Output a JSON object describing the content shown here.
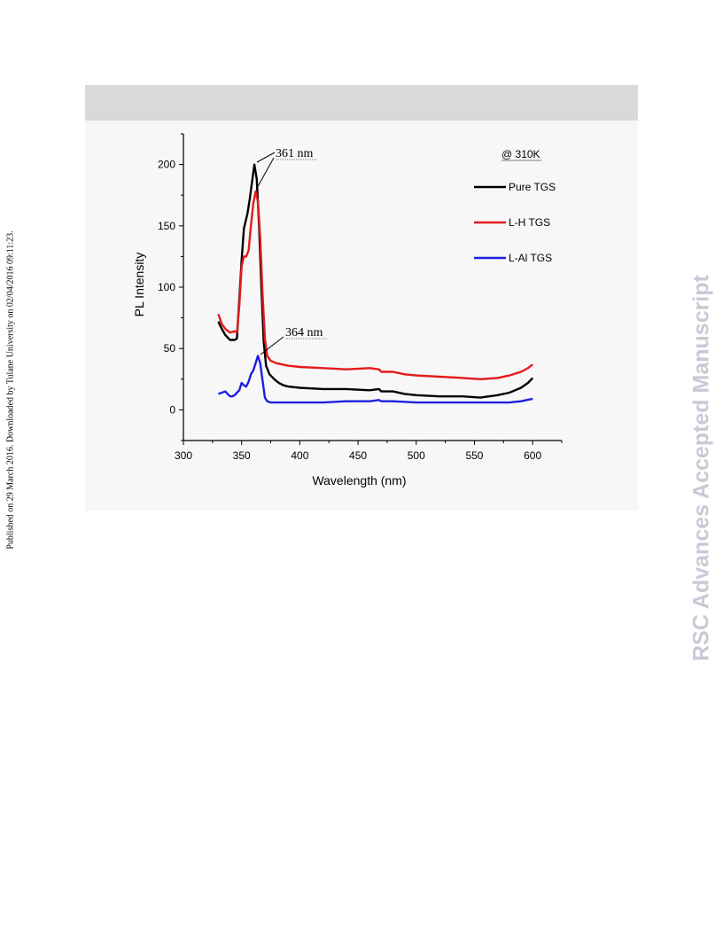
{
  "margin": {
    "left_note": "Published on 29 March 2016. Downloaded by Tulane University on 02/04/2016 09:11:23.",
    "right_watermark": "RSC Advances Accepted Manuscript"
  },
  "chart_data": {
    "type": "line",
    "title": "",
    "xlabel": "Wavelength (nm)",
    "ylabel": "PL Intensity",
    "xlim": [
      300,
      625
    ],
    "ylim": [
      -25,
      225
    ],
    "xticks": [
      300,
      350,
      400,
      450,
      500,
      550,
      600
    ],
    "yticks": [
      0,
      50,
      100,
      150,
      200
    ],
    "legend_position": "top-right",
    "annotations": {
      "condition": "@ 310K",
      "peak1": "361 nm",
      "peak2": "364 nm"
    },
    "series": [
      {
        "name": "Pure TGS",
        "color": "#000000",
        "points": [
          [
            330,
            72
          ],
          [
            333,
            66
          ],
          [
            336,
            61
          ],
          [
            340,
            57
          ],
          [
            344,
            57
          ],
          [
            346,
            58
          ],
          [
            348,
            90
          ],
          [
            350,
            122
          ],
          [
            352,
            148
          ],
          [
            355,
            160
          ],
          [
            357,
            172
          ],
          [
            359,
            186
          ],
          [
            361,
            200
          ],
          [
            363,
            188
          ],
          [
            365,
            150
          ],
          [
            367,
            100
          ],
          [
            369,
            55
          ],
          [
            371,
            36
          ],
          [
            374,
            29
          ],
          [
            378,
            25
          ],
          [
            382,
            22
          ],
          [
            386,
            20
          ],
          [
            390,
            19
          ],
          [
            400,
            18
          ],
          [
            420,
            17
          ],
          [
            440,
            17
          ],
          [
            460,
            16
          ],
          [
            468,
            17
          ],
          [
            470,
            15
          ],
          [
            480,
            15
          ],
          [
            490,
            13
          ],
          [
            500,
            12
          ],
          [
            520,
            11
          ],
          [
            540,
            11
          ],
          [
            555,
            10
          ],
          [
            570,
            12
          ],
          [
            580,
            14
          ],
          [
            590,
            18
          ],
          [
            596,
            22
          ],
          [
            600,
            26
          ]
        ]
      },
      {
        "name": "L-H TGS",
        "color": "#e41a1c",
        "points": [
          [
            330,
            78
          ],
          [
            333,
            70
          ],
          [
            336,
            66
          ],
          [
            340,
            63
          ],
          [
            344,
            64
          ],
          [
            346,
            63
          ],
          [
            348,
            85
          ],
          [
            350,
            117
          ],
          [
            352,
            125
          ],
          [
            354,
            125
          ],
          [
            356,
            130
          ],
          [
            358,
            150
          ],
          [
            360,
            168
          ],
          [
            362,
            178
          ],
          [
            364,
            170
          ],
          [
            366,
            140
          ],
          [
            368,
            95
          ],
          [
            370,
            58
          ],
          [
            372,
            44
          ],
          [
            375,
            40
          ],
          [
            380,
            38
          ],
          [
            390,
            36
          ],
          [
            400,
            35
          ],
          [
            420,
            34
          ],
          [
            440,
            33
          ],
          [
            460,
            34
          ],
          [
            468,
            33
          ],
          [
            470,
            31
          ],
          [
            480,
            31
          ],
          [
            490,
            29
          ],
          [
            500,
            28
          ],
          [
            520,
            27
          ],
          [
            540,
            26
          ],
          [
            555,
            25
          ],
          [
            570,
            26
          ],
          [
            580,
            28
          ],
          [
            590,
            31
          ],
          [
            596,
            34
          ],
          [
            600,
            37
          ]
        ]
      },
      {
        "name": "L-Al TGS",
        "color": "#1f1fe0",
        "points": [
          [
            330,
            13
          ],
          [
            333,
            14
          ],
          [
            336,
            15
          ],
          [
            338,
            13
          ],
          [
            340,
            11
          ],
          [
            342,
            11
          ],
          [
            344,
            12
          ],
          [
            346,
            14
          ],
          [
            348,
            16
          ],
          [
            350,
            22
          ],
          [
            352,
            20
          ],
          [
            354,
            19
          ],
          [
            356,
            23
          ],
          [
            358,
            29
          ],
          [
            360,
            32
          ],
          [
            362,
            38
          ],
          [
            364,
            44
          ],
          [
            366,
            38
          ],
          [
            368,
            24
          ],
          [
            370,
            10
          ],
          [
            372,
            7
          ],
          [
            375,
            6
          ],
          [
            380,
            6
          ],
          [
            400,
            6
          ],
          [
            420,
            6
          ],
          [
            440,
            7
          ],
          [
            460,
            7
          ],
          [
            468,
            8
          ],
          [
            470,
            7
          ],
          [
            480,
            7
          ],
          [
            500,
            6
          ],
          [
            520,
            6
          ],
          [
            540,
            6
          ],
          [
            560,
            6
          ],
          [
            580,
            6
          ],
          [
            590,
            7
          ],
          [
            595,
            8
          ],
          [
            600,
            9
          ]
        ]
      }
    ]
  }
}
